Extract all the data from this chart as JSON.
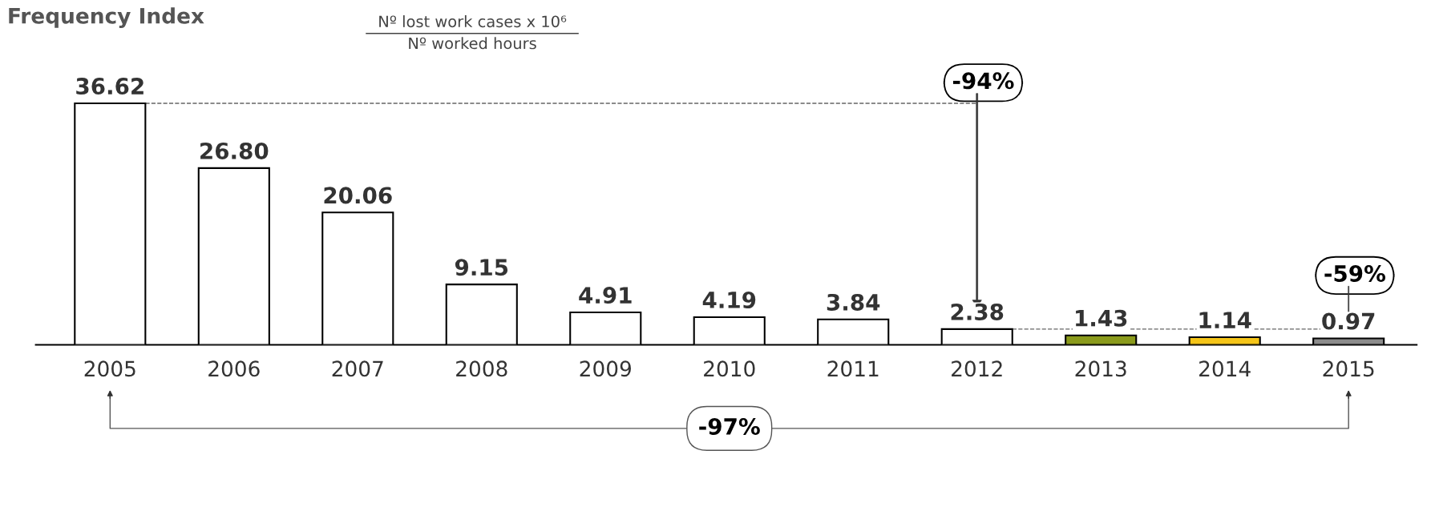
{
  "chart_data": {
    "type": "bar",
    "title": "Frequency Index",
    "subtitle": "Nº lost work cases x 10⁶\nNº worked hours",
    "categories": [
      "2005",
      "2006",
      "2007",
      "2008",
      "2009",
      "2010",
      "2011",
      "2012",
      "2013",
      "2014",
      "2015"
    ],
    "values": [
      36.62,
      26.8,
      20.06,
      9.15,
      4.91,
      4.19,
      3.84,
      2.38,
      1.43,
      1.14,
      0.97
    ],
    "value_labels": [
      "36.62",
      "26.80",
      "20.06",
      "9.15",
      "4.91",
      "4.19",
      "3.84",
      "2.38",
      "1.43",
      "1.14",
      "0.97"
    ],
    "colors": [
      "#ffffff",
      "#ffffff",
      "#ffffff",
      "#ffffff",
      "#ffffff",
      "#ffffff",
      "#ffffff",
      "#ffffff",
      "#8a9a1b",
      "#f5c518",
      "#8c8c8c"
    ],
    "tick_labels": "x",
    "ref_lines": [
      {
        "axis": "y",
        "value": 36.62,
        "line_style": "dashed",
        "color": "#666666"
      },
      {
        "axis": "y",
        "value": 2.38,
        "line_style": "dashed",
        "color": "#666666"
      }
    ],
    "annotations": [
      "-94%",
      "-59%",
      "-97%"
    ]
  }
}
